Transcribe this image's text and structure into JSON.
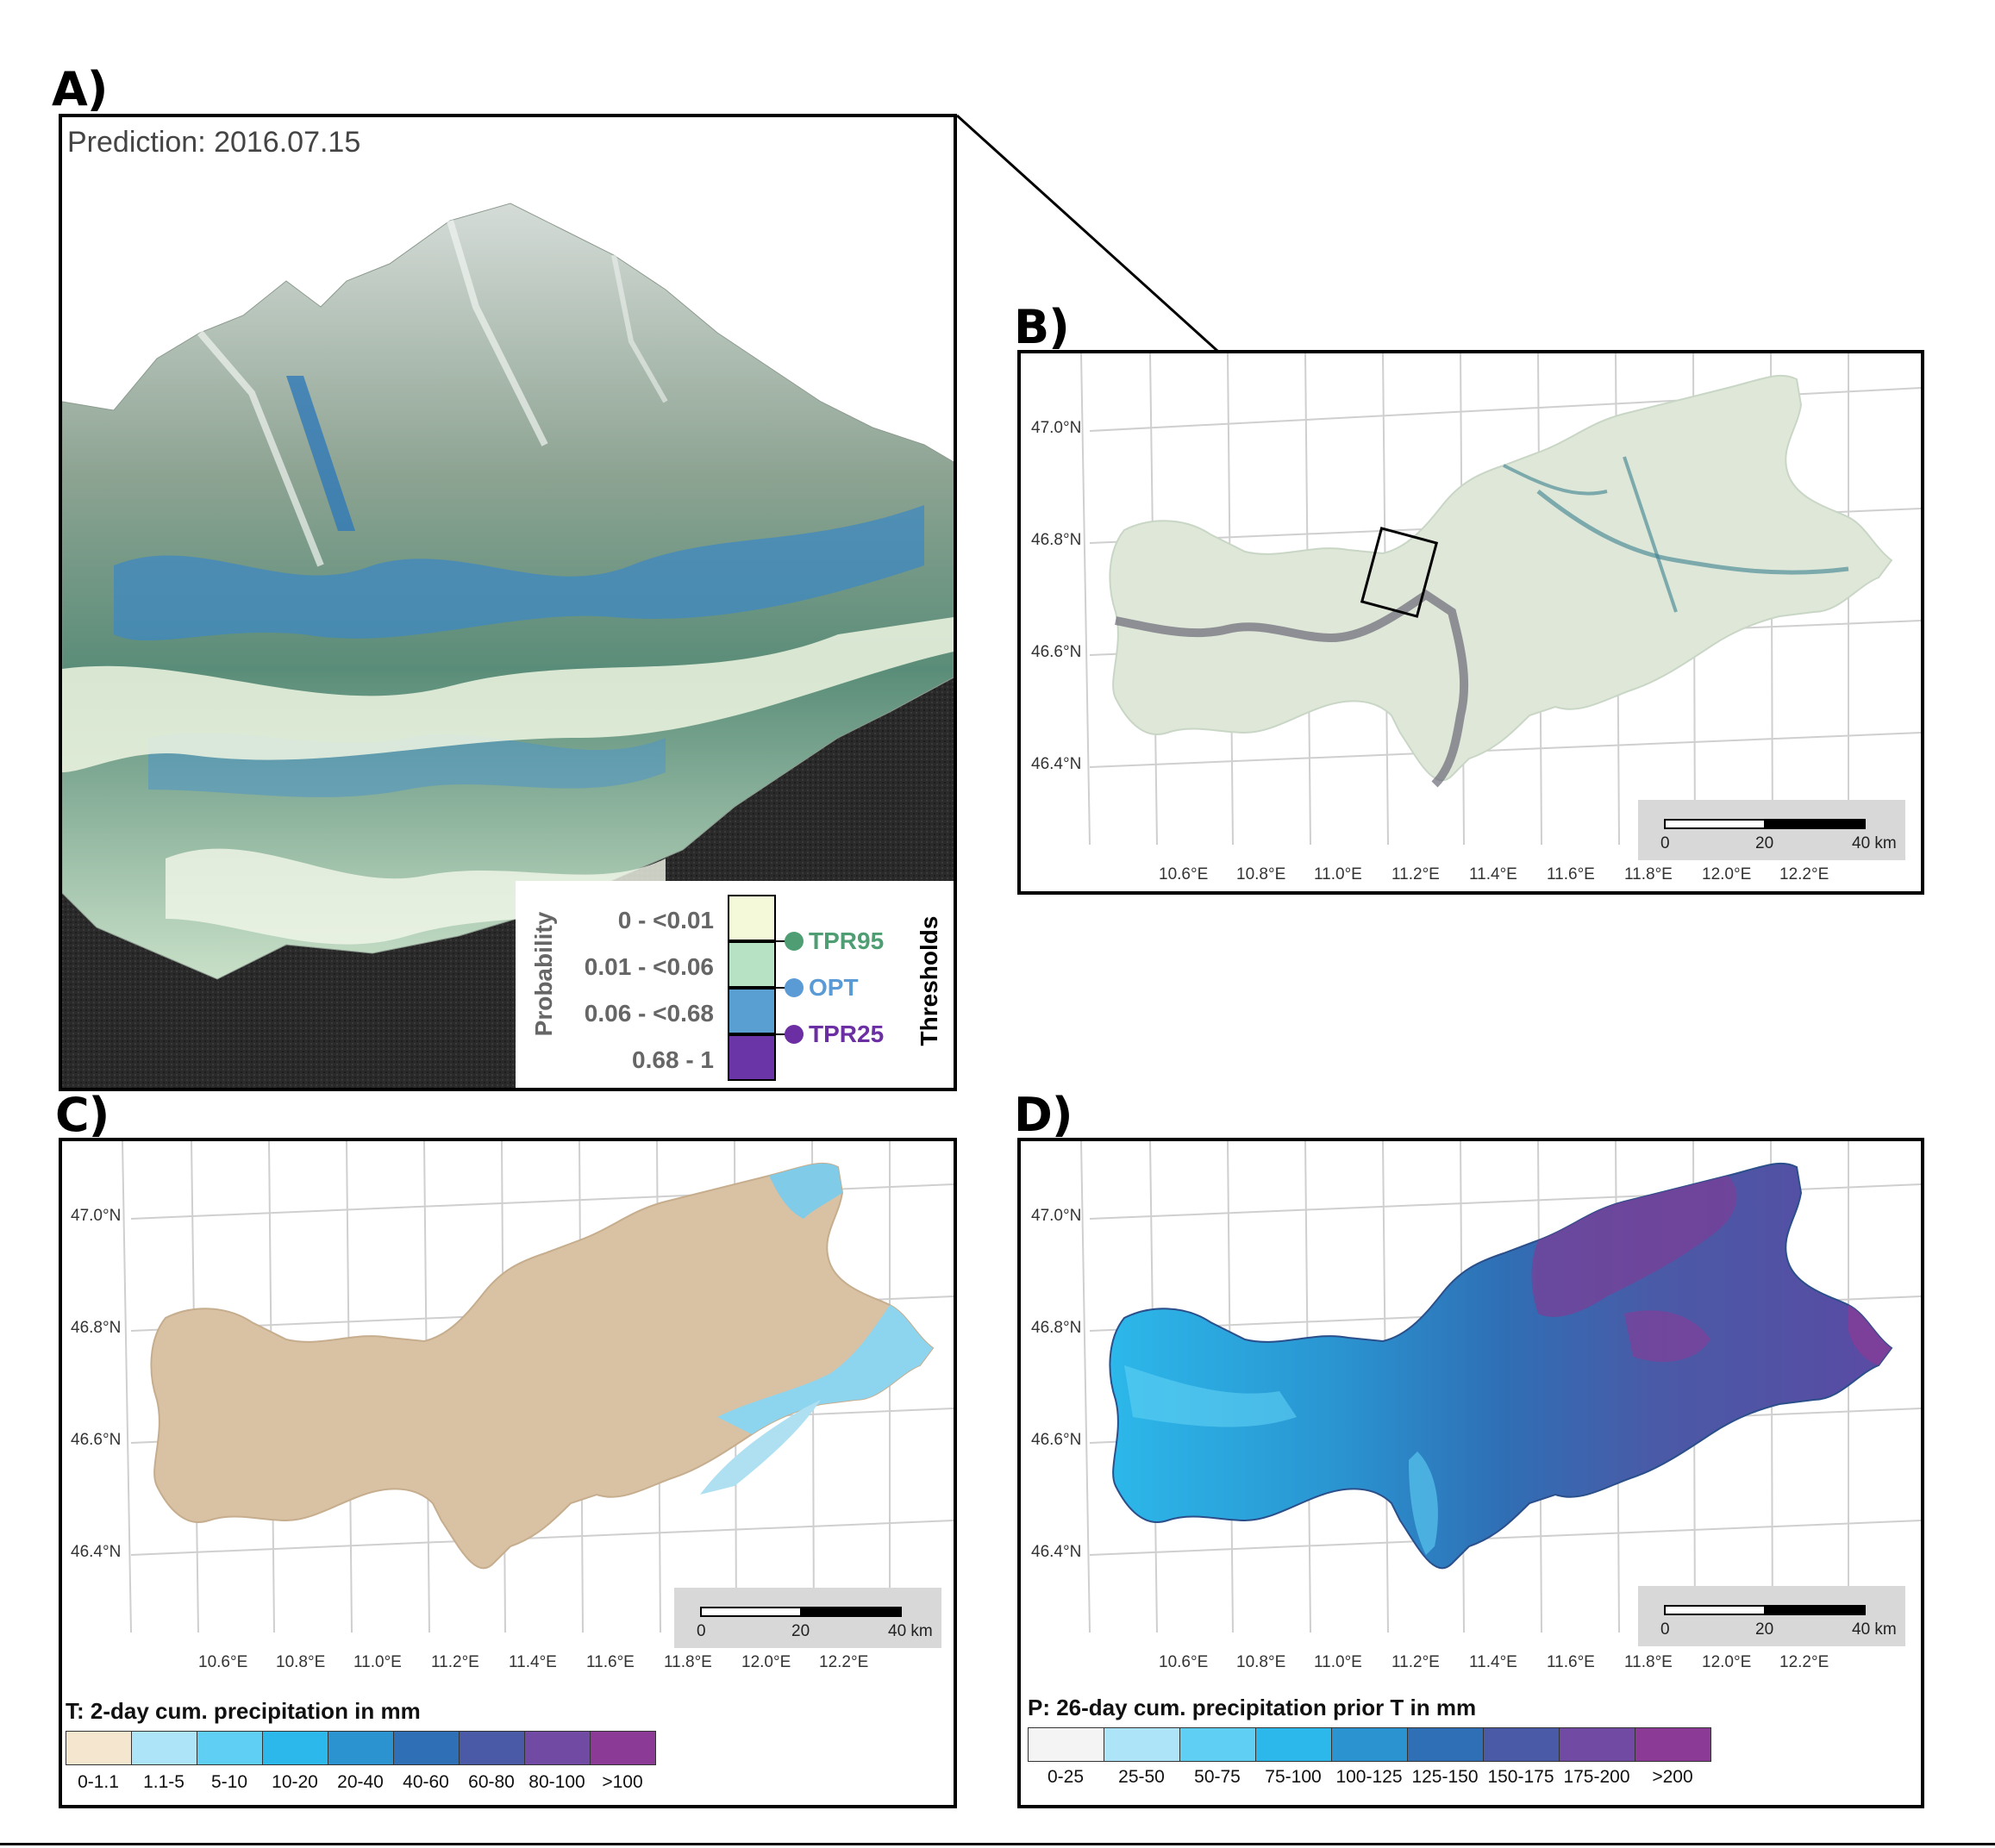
{
  "panels": {
    "a": {
      "letter": "A)",
      "prediction_label": "Prediction: 2016.07.15"
    },
    "b": {
      "letter": "B)"
    },
    "c": {
      "letter": "C)"
    },
    "d": {
      "letter": "D)"
    }
  },
  "axes": {
    "lat_ticks": [
      "47.0°N",
      "46.8°N",
      "46.6°N",
      "46.4°N"
    ],
    "lon_ticks": [
      "10.6°E",
      "10.8°E",
      "11.0°E",
      "11.2°E",
      "11.4°E",
      "11.6°E",
      "11.8°E",
      "12.0°E",
      "12.2°E"
    ]
  },
  "scalebar": {
    "zero": "0",
    "mid": "20",
    "end": "40 km"
  },
  "probability_legend": {
    "title": "Probability",
    "classes": [
      "0 - <0.01",
      "0.01 - <0.06",
      "0.06 - <0.68",
      "0.68 - 1"
    ],
    "class_colors": [
      "#f3f9d9",
      "#b7e2c4",
      "#5a9fd2",
      "#6a35a6"
    ],
    "thresholds_title": "Thresholds",
    "thresholds": [
      {
        "label": "TPR95",
        "color": "#4f9e73"
      },
      {
        "label": "OPT",
        "color": "#5b9bd5"
      },
      {
        "label": "TPR25",
        "color": "#6b2fa3"
      }
    ]
  },
  "legend_c": {
    "title": "T: 2-day cum. precipitation in mm",
    "labels": [
      "0-1.1",
      "1.1-5",
      "5-10",
      "10-20",
      "20-40",
      "40-60",
      "60-80",
      "80-100",
      ">100"
    ],
    "colors": [
      "#f5e6cf",
      "#aee4f7",
      "#5fd0f3",
      "#2cb8ea",
      "#2a93d0",
      "#2f6fb5",
      "#4a5aa7",
      "#714aa3",
      "#8b3b96"
    ]
  },
  "legend_d": {
    "title": "P: 26-day cum. precipitation prior T in mm",
    "labels": [
      "0-25",
      "25-50",
      "50-75",
      "75-100",
      "100-125",
      "125-150",
      "150-175",
      "175-200",
      ">200"
    ],
    "colors": [
      "#f4f4f4",
      "#aee4f7",
      "#5fd0f3",
      "#2cb8ea",
      "#2a93d0",
      "#2f6fb5",
      "#4a5aa7",
      "#714aa3",
      "#8b3b96"
    ]
  }
}
